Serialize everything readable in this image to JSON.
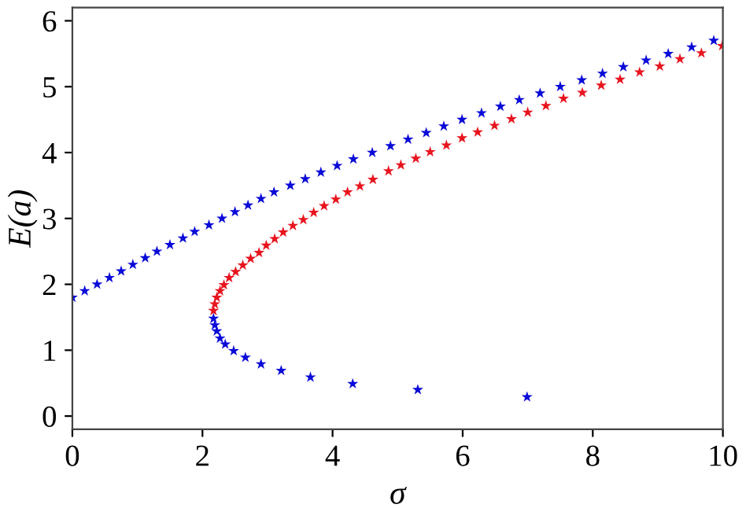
{
  "chart_data": {
    "type": "scatter",
    "xlabel": "σ",
    "ylabel": "E(a)",
    "marker": "star",
    "xlim": [
      0,
      10
    ],
    "ylim": [
      -0.2,
      6.2
    ],
    "xticks": [
      0,
      2,
      4,
      6,
      8,
      10
    ],
    "yticks": [
      0,
      1,
      2,
      3,
      4,
      5,
      6
    ],
    "grid": false,
    "legend": false,
    "series": [
      {
        "color": "#0a0ad8",
        "x": [
          0,
          0.19,
          0.38,
          0.57,
          0.75,
          0.93,
          1.12,
          1.3,
          1.5,
          1.7,
          1.88,
          2.1,
          2.3,
          2.5,
          2.7,
          2.9,
          3.1,
          3.35,
          3.58,
          3.82,
          4.07,
          4.32,
          4.61,
          4.89,
          5.16,
          5.44,
          5.71,
          5.99,
          6.29,
          6.58,
          6.87,
          7.19,
          7.5,
          7.83,
          8.15,
          8.47,
          8.82,
          9.16,
          9.52,
          9.86
        ],
        "values": [
          1.8,
          1.9,
          2.0,
          2.1,
          2.2,
          2.3,
          2.4,
          2.5,
          2.6,
          2.7,
          2.8,
          2.9,
          3.0,
          3.1,
          3.2,
          3.3,
          3.4,
          3.5,
          3.6,
          3.7,
          3.8,
          3.9,
          4.0,
          4.1,
          4.2,
          4.3,
          4.4,
          4.5,
          4.6,
          4.7,
          4.8,
          4.9,
          5.0,
          5.1,
          5.2,
          5.3,
          5.4,
          5.5,
          5.6,
          5.7
        ]
      },
      {
        "color": "#0a0ad8",
        "x": [
          2.17,
          2.19,
          2.22,
          2.27,
          2.35,
          2.48,
          2.66,
          2.9,
          3.21,
          3.66,
          4.31,
          5.31,
          6.99
        ],
        "values": [
          1.48,
          1.38,
          1.29,
          1.18,
          1.09,
          0.99,
          0.89,
          0.79,
          0.69,
          0.59,
          0.49,
          0.4,
          0.29
        ]
      },
      {
        "color": "#e8141e",
        "x": [
          2.17,
          2.19,
          2.22,
          2.27,
          2.33,
          2.41,
          2.51,
          2.62,
          2.74,
          2.87,
          2.98,
          3.11,
          3.24,
          3.39,
          3.55,
          3.71,
          3.87,
          4.05,
          4.23,
          4.42,
          4.62,
          4.86,
          5.05,
          5.28,
          5.5,
          5.75,
          5.99,
          6.23,
          6.49,
          6.75,
          7.0,
          7.28,
          7.55,
          7.84,
          8.13,
          8.42,
          8.72,
          9.03,
          9.34,
          9.67,
          9.99
        ],
        "values": [
          1.6,
          1.7,
          1.8,
          1.9,
          1.99,
          2.1,
          2.19,
          2.29,
          2.39,
          2.48,
          2.59,
          2.69,
          2.79,
          2.89,
          2.98,
          3.09,
          3.19,
          3.29,
          3.4,
          3.49,
          3.59,
          3.72,
          3.81,
          3.91,
          4.01,
          4.11,
          4.22,
          4.31,
          4.41,
          4.51,
          4.61,
          4.71,
          4.82,
          4.91,
          5.02,
          5.11,
          5.22,
          5.31,
          5.42,
          5.51,
          5.62
        ]
      }
    ]
  }
}
